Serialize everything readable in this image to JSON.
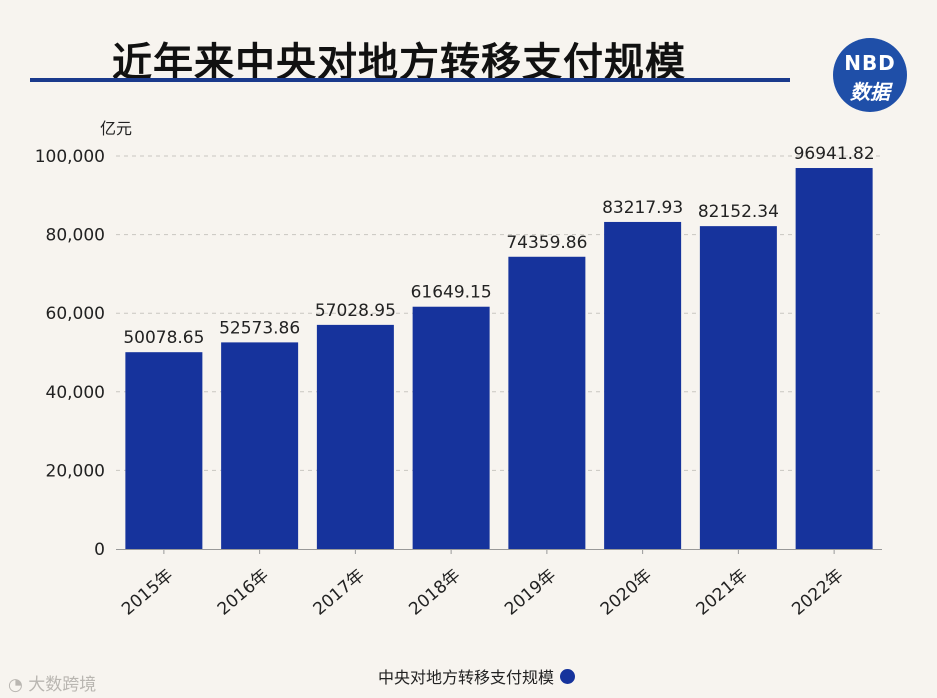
{
  "title": "近年来中央对地方转移支付规模",
  "logo": {
    "line1": "NBD",
    "line2": "数据"
  },
  "legend_label": "中央对地方转移支付规模",
  "source_mark": "大数跨境",
  "colors": {
    "bar": "#16339c",
    "title_rule": "#1a3a8c",
    "logo_bg": "#1f4fa8"
  },
  "chart_data": {
    "type": "bar",
    "title": "近年来中央对地方转移支付规模",
    "ylabel": "亿元",
    "xlabel": "",
    "ylim": [
      0,
      100000
    ],
    "yticks": [
      0,
      20000,
      40000,
      60000,
      80000,
      100000
    ],
    "ytick_labels": [
      "0",
      "20,000",
      "40,000",
      "60,000",
      "80,000",
      "100,000"
    ],
    "grid": true,
    "categories": [
      "2015年",
      "2016年",
      "2017年",
      "2018年",
      "2019年",
      "2020年",
      "2021年",
      "2022年"
    ],
    "values": [
      50078.65,
      52573.86,
      57028.95,
      61649.15,
      74359.86,
      83217.93,
      82152.34,
      96941.82
    ],
    "value_labels": [
      "50078.65",
      "52573.86",
      "57028.95",
      "61649.15",
      "74359.86",
      "83217.93",
      "82152.34",
      "96941.82"
    ],
    "series": [
      {
        "name": "中央对地方转移支付规模"
      }
    ]
  }
}
